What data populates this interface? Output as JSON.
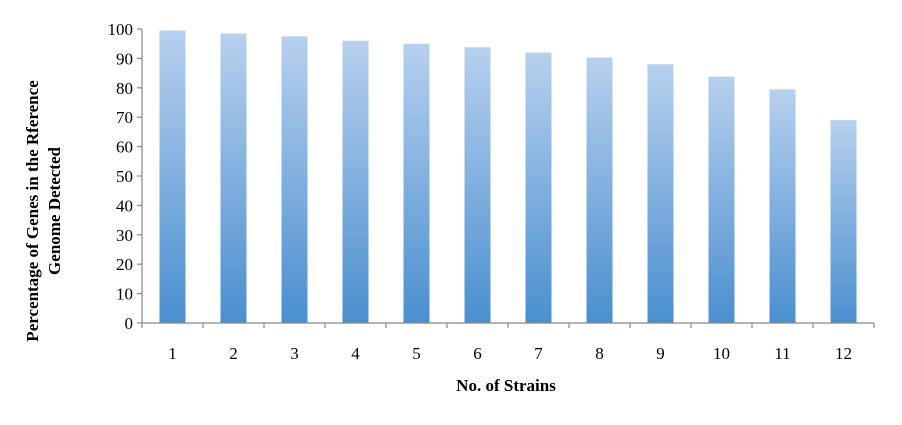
{
  "chart_data": {
    "type": "bar",
    "categories": [
      "1",
      "2",
      "3",
      "4",
      "5",
      "6",
      "7",
      "8",
      "9",
      "10",
      "11",
      "12"
    ],
    "values": [
      99.5,
      98.5,
      97.5,
      96,
      95,
      93.8,
      92,
      90.3,
      88,
      83.8,
      79.5,
      69
    ],
    "xlabel": "No. of Strains",
    "ylabel_lines": [
      "Percentage of Genes in the Rference",
      "Genome Detected"
    ],
    "ylim": [
      0,
      100
    ],
    "yticks": [
      0,
      10,
      20,
      30,
      40,
      50,
      60,
      70,
      80,
      90,
      100
    ],
    "grid": false,
    "legend": "none",
    "colors": {
      "bar_top": "#b7d0ee",
      "bar_bottom": "#4a8fcf",
      "axis": "#888888"
    }
  }
}
